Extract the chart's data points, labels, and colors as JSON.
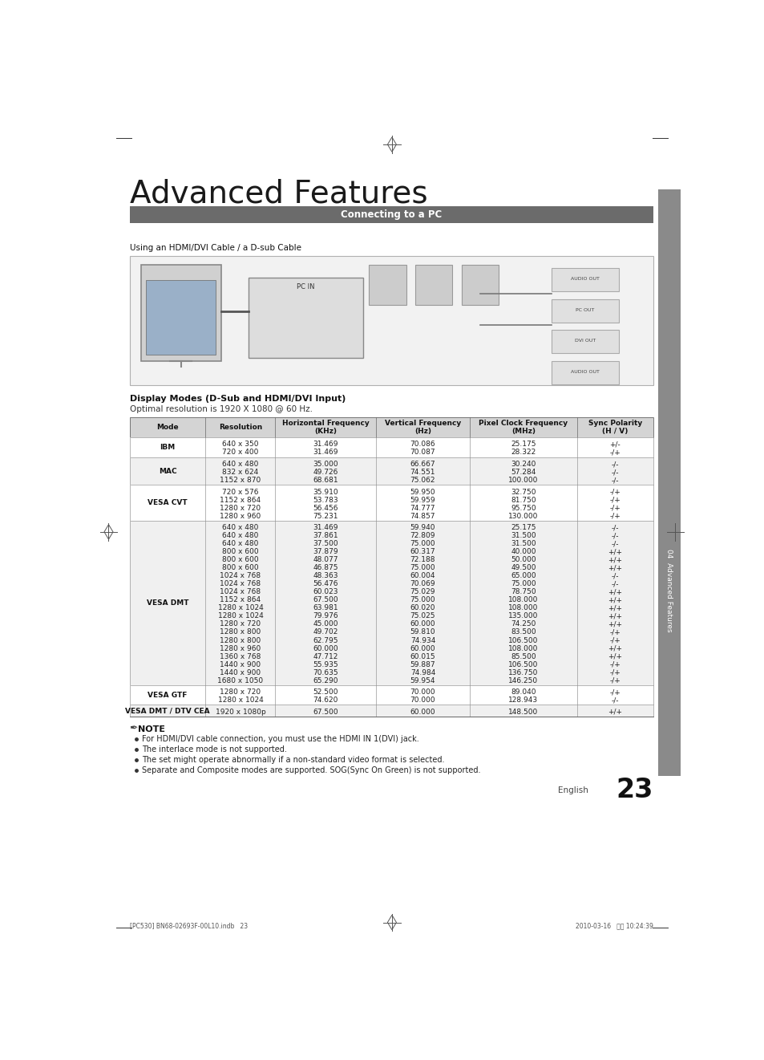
{
  "title": "Advanced Features",
  "section_bar_text": "Connecting to a PC",
  "section_bar_color": "#6b6b6b",
  "section_bar_text_color": "#ffffff",
  "subtitle": "Using an HDMI/DVI Cable / a D-sub Cable",
  "table_title": "Display Modes (D-Sub and HDMI/DVI Input)",
  "table_subtitle": "Optimal resolution is 1920 X 1080 @ 60 Hz.",
  "table_headers": [
    "Mode",
    "Resolution",
    "Horizontal Frequency\n(KHz)",
    "Vertical Frequency\n(Hz)",
    "Pixel Clock Frequency\n(MHz)",
    "Sync Polarity\n(H / V)"
  ],
  "table_rows": [
    [
      "IBM",
      "640 x 350\n720 x 400",
      "31.469\n31.469",
      "70.086\n70.087",
      "25.175\n28.322",
      "+/-\n-/+"
    ],
    [
      "MAC",
      "640 x 480\n832 x 624\n1152 x 870",
      "35.000\n49.726\n68.681",
      "66.667\n74.551\n75.062",
      "30.240\n57.284\n100.000",
      "-/-\n-/-\n-/-"
    ],
    [
      "VESA CVT",
      "720 x 576\n1152 x 864\n1280 x 720\n1280 x 960",
      "35.910\n53.783\n56.456\n75.231",
      "59.950\n59.959\n74.777\n74.857",
      "32.750\n81.750\n95.750\n130.000",
      "-/+\n-/+\n-/+\n-/+"
    ],
    [
      "VESA DMT",
      "640 x 480\n640 x 480\n640 x 480\n800 x 600\n800 x 600\n800 x 600\n1024 x 768\n1024 x 768\n1024 x 768\n1152 x 864\n1280 x 1024\n1280 x 1024\n1280 x 720\n1280 x 800\n1280 x 800\n1280 x 960\n1360 x 768\n1440 x 900\n1440 x 900\n1680 x 1050",
      "31.469\n37.861\n37.500\n37.879\n48.077\n46.875\n48.363\n56.476\n60.023\n67.500\n63.981\n79.976\n45.000\n49.702\n62.795\n60.000\n47.712\n55.935\n70.635\n65.290",
      "59.940\n72.809\n75.000\n60.317\n72.188\n75.000\n60.004\n70.069\n75.029\n75.000\n60.020\n75.025\n60.000\n59.810\n74.934\n60.000\n60.015\n59.887\n74.984\n59.954",
      "25.175\n31.500\n31.500\n40.000\n50.000\n49.500\n65.000\n75.000\n78.750\n108.000\n108.000\n135.000\n74.250\n83.500\n106.500\n108.000\n85.500\n106.500\n136.750\n146.250",
      "-/-\n-/-\n-/-\n+/+\n+/+\n+/+\n-/-\n-/-\n+/+\n+/+\n+/+\n+/+\n+/+\n-/+\n-/+\n+/+\n+/+\n-/+\n-/+\n-/+"
    ],
    [
      "VESA GTF",
      "1280 x 720\n1280 x 1024",
      "52.500\n74.620",
      "70.000\n70.000",
      "89.040\n128.943",
      "-/+\n-/-"
    ],
    [
      "VESA DMT / DTV CEA",
      "1920 x 1080p",
      "67.500",
      "60.000",
      "148.500",
      "+/+"
    ]
  ],
  "note_title": "NOTE",
  "note_items": [
    "For HDMI/DVI cable connection, you must use the HDMI IN 1(DVI) jack.",
    "The interlace mode is not supported.",
    "The set might operate abnormally if a non-standard video format is selected.",
    "Separate and Composite modes are supported. SOG(Sync On Green) is not supported."
  ],
  "page_number": "23",
  "page_language": "English",
  "bg_color": "#ffffff",
  "side_tab_color": "#8a8a8a",
  "footer_left": "[PC530] BN68-02693F-00L10.indb   23",
  "footer_right": "2010-03-16   오후 10:24:39"
}
